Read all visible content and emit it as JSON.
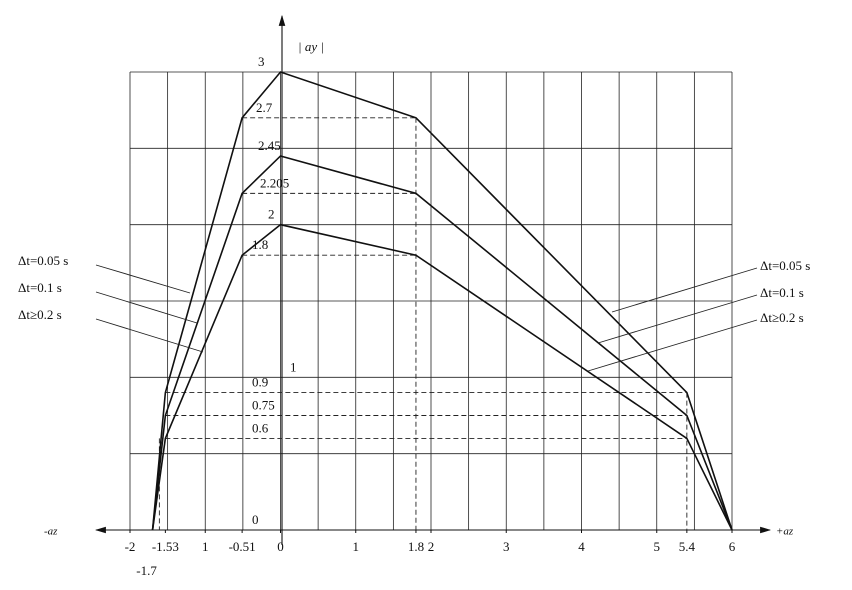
{
  "chart_data": {
    "type": "line",
    "y_label": "| ay |",
    "x_label_left": "-az",
    "x_label_right": "+az",
    "x": [
      -1.7,
      -1.53,
      -0.51,
      0,
      1.8,
      5.4,
      6
    ],
    "series": [
      {
        "name": "Δt=0.05 s",
        "color": "#111111",
        "values": [
          0,
          0.9,
          2.7,
          3,
          2.7,
          0.9,
          0
        ]
      },
      {
        "name": "Δt=0.1 s",
        "color": "#111111",
        "values": [
          0,
          0.75,
          2.205,
          2.45,
          2.205,
          0.75,
          0
        ]
      },
      {
        "name": "Δt≥0.2 s",
        "color": "#111111",
        "values": [
          0,
          0.6,
          1.8,
          2,
          1.8,
          0.6,
          0
        ]
      }
    ],
    "xlim": [
      -2,
      6
    ],
    "ylim": [
      0,
      3
    ],
    "xticks": [
      -2,
      -1.53,
      {
        "value": -1,
        "label": "1"
      },
      -0.51,
      0,
      1,
      1.8,
      2,
      3,
      4,
      5,
      5.4,
      6
    ],
    "xticks_lower": [
      -1.7
    ],
    "yticks": [
      3,
      2.7,
      2.45,
      2.205,
      2,
      1.8,
      1,
      0.9,
      0.75,
      0.6,
      0
    ],
    "grid": true
  }
}
